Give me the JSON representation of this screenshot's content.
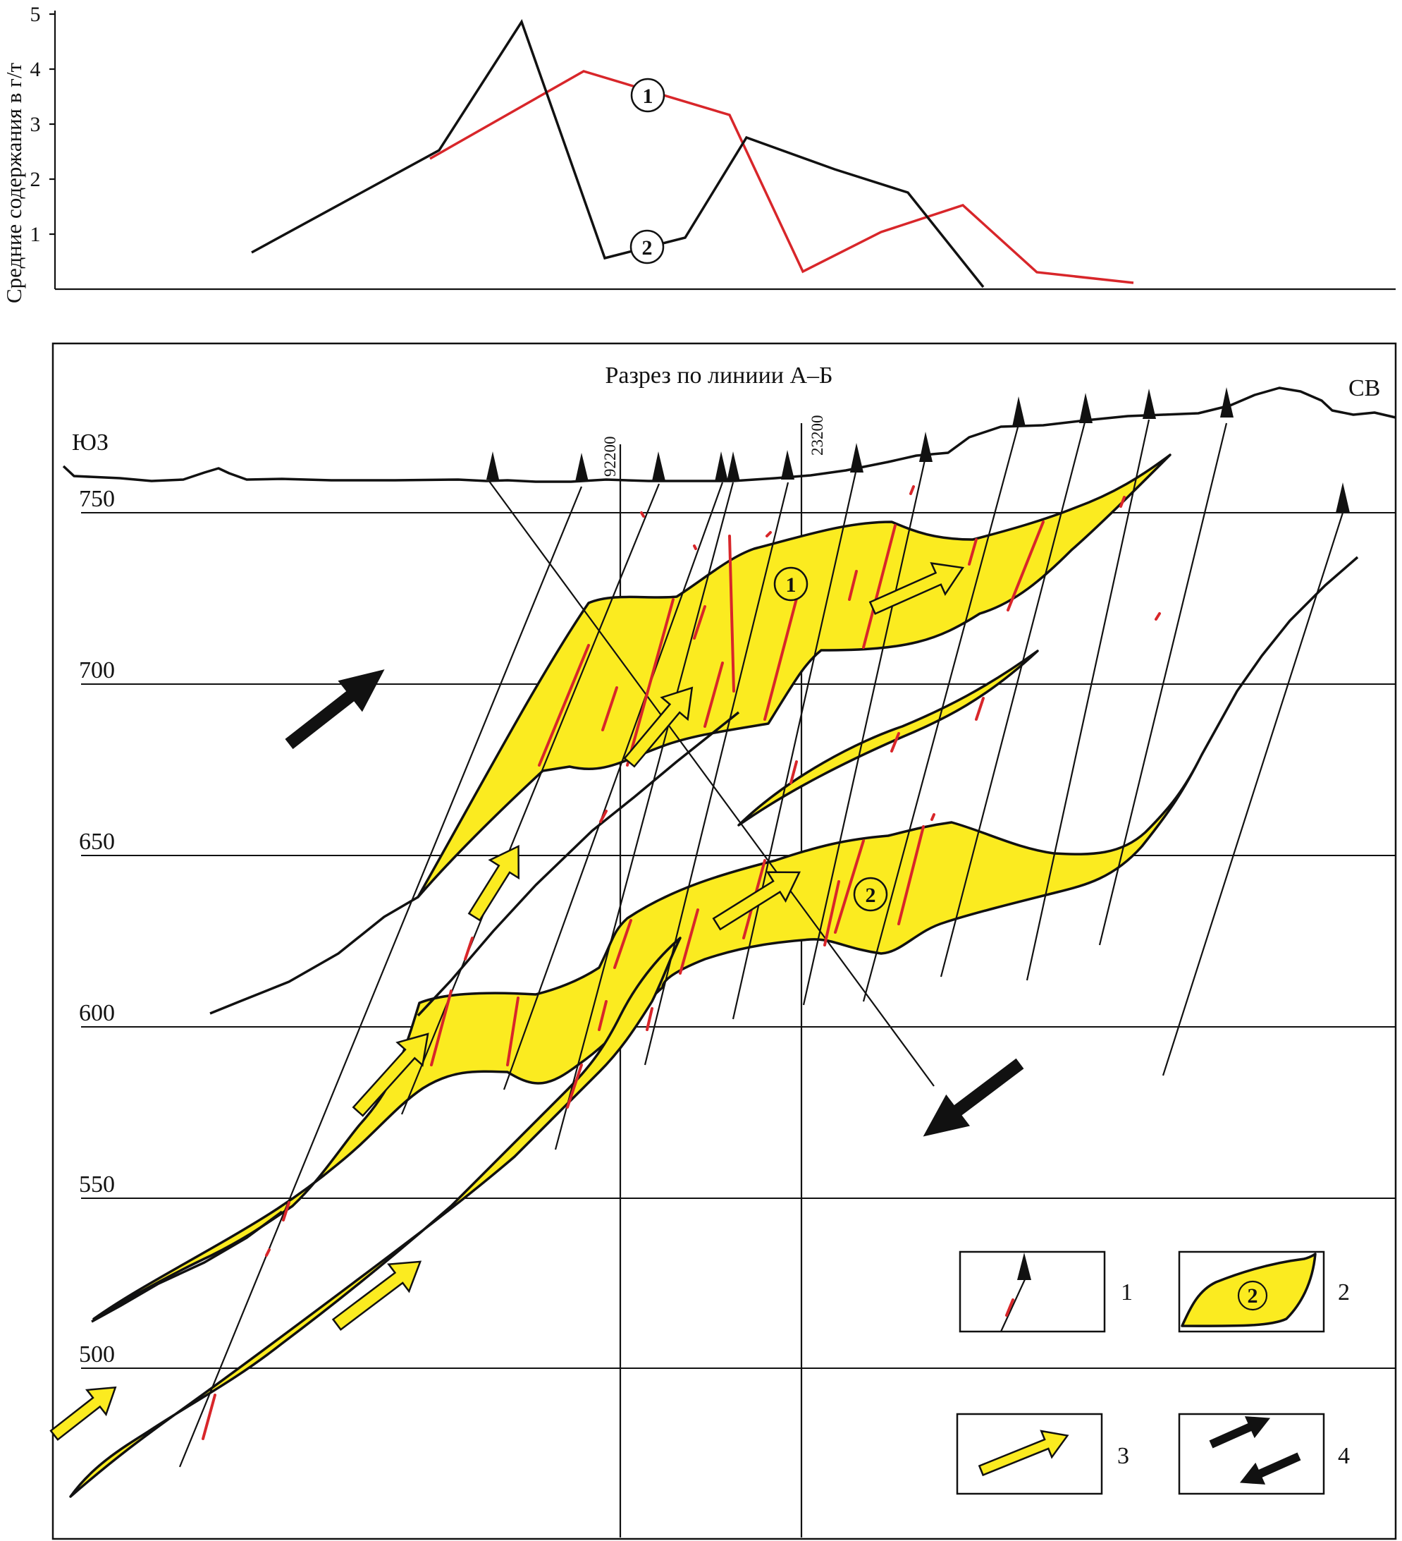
{
  "top_chart": {
    "y_axis_label": "Средние содержания в г/т",
    "y_ticks": [
      "1",
      "2",
      "3",
      "4",
      "5"
    ],
    "markers": {
      "series_1": "1",
      "series_2": "2"
    },
    "colors": {
      "series_1": "#d8262a",
      "series_2": "#111111"
    }
  },
  "section": {
    "title": "Разрез по линиии А–Б",
    "direction_left": "ЮЗ",
    "direction_right": "СВ",
    "elevations": [
      "750",
      "700",
      "650",
      "600",
      "550",
      "500"
    ],
    "wells": [
      "92200",
      "23200"
    ],
    "ore_body_labels": [
      "1",
      "2"
    ],
    "colors": {
      "ore": "#fbeb20",
      "mineralization": "#d8262a"
    }
  },
  "legend": {
    "items": [
      {
        "number": "1",
        "icon": "well-with-mineralization-icon"
      },
      {
        "number": "2",
        "icon": "ore-body-icon",
        "marker": "2"
      },
      {
        "number": "3",
        "icon": "yellow-arrow-icon"
      },
      {
        "number": "4",
        "icon": "black-arrows-icon"
      }
    ]
  }
}
